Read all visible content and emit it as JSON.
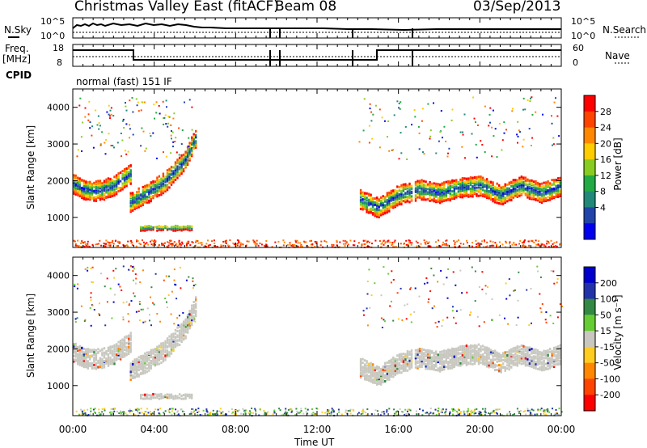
{
  "header": {
    "station": "Christmas Valley East (fitACF)",
    "beam": "Beam 08",
    "date": "03/Sep/2013"
  },
  "left_labels": {
    "nsky": "N.Sky",
    "freq": "Freq.",
    "freq_unit": "[MHz]",
    "cpid": "CPID"
  },
  "right_labels": {
    "nsearch": "N.Search",
    "nave": "Nave"
  },
  "scales": {
    "sky_top": "10^5",
    "sky_bottom": "10^0",
    "freq_top": "18",
    "freq_bottom": "8",
    "nave_top": "60",
    "nave_bottom": "0"
  },
  "cpid_text": "normal (fast) 151 IF",
  "x_axis": {
    "label": "Time UT",
    "ticks": [
      "00:00",
      "04:00",
      "08:00",
      "12:00",
      "16:00",
      "20:00",
      "00:00"
    ]
  },
  "y_axis_label": "Slant Range [km]",
  "y_ticks": [
    "1000",
    "2000",
    "3000",
    "4000"
  ],
  "colorbars": {
    "power": {
      "label": "Power [dB]",
      "ticks": [
        "28",
        "24",
        "20",
        "16",
        "12",
        "8",
        "4"
      ],
      "colors": [
        "#ff0000",
        "#ff4400",
        "#ff8800",
        "#ffcc00",
        "#88cc22",
        "#22aa44",
        "#22887a",
        "#2244aa",
        "#0000ee"
      ]
    },
    "velocity": {
      "label": "Velocity [m s⁻¹]",
      "ticks": [
        "200",
        "100",
        "50",
        "15",
        "-15",
        "-50",
        "-100",
        "-200"
      ],
      "colors": [
        "#0000cc",
        "#2233aa",
        "#338844",
        "#66cc33",
        "#c8c8c0",
        "#ffcc22",
        "#ff8800",
        "#ff4400",
        "#ff0000"
      ]
    }
  },
  "chart_data": {
    "type": "heatmap",
    "title": "Christmas Valley East (fitACF) Beam 08 03/Sep/2013",
    "xlabel": "Time UT",
    "ylabel": "Slant Range [km]",
    "x_range_hours": [
      0,
      24
    ],
    "y_range_km": [
      180,
      4500
    ],
    "power_scale_db": [
      0,
      30
    ],
    "velocity_scale_ms": [
      -250,
      250
    ],
    "frequency_mhz": {
      "pre_0245": 15,
      "0245_to_1530": 10,
      "post_1530": 15
    },
    "power_features": [
      {
        "name": "ionospheric band",
        "t": [
          0,
          0.5,
          1.0,
          1.5,
          2.0,
          2.5,
          2.9
        ],
        "range": [
          1950,
          1800,
          1750,
          1800,
          1900,
          2100,
          2250
        ]
      },
      {
        "name": "rising echo",
        "t": [
          2.8,
          3.5,
          4.5,
          5.5,
          6.0
        ],
        "range": [
          1450,
          1650,
          2000,
          2600,
          3200
        ]
      },
      {
        "name": "night band",
        "t": [
          14.0,
          15.0,
          16.0,
          17.0,
          18.0,
          19.0,
          20.0,
          21.0,
          22.0,
          23.0,
          24.0
        ],
        "range": [
          1550,
          1300,
          1650,
          1800,
          1700,
          1850,
          1900,
          1650,
          1900,
          1700,
          1900
        ]
      },
      {
        "name": "near range echo",
        "t": [
          3.3,
          5.8
        ],
        "range": [
          750,
          750
        ]
      }
    ]
  }
}
